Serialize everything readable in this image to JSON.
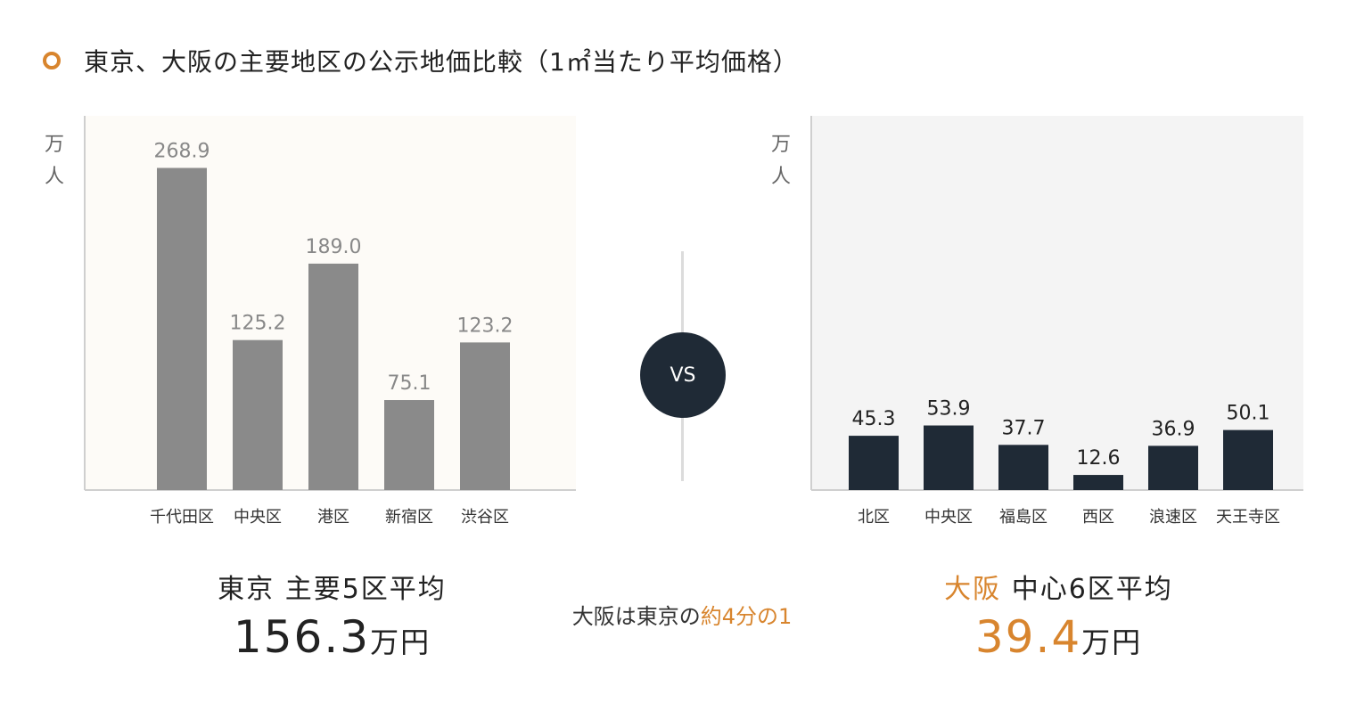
{
  "title": "東京、大阪の主要地区の公示地価比較（1㎡当たり平均価格）",
  "colors": {
    "accent": "#d8852e",
    "tokyo_bar": "#8a8a8a",
    "osaka_bar": "#1f2a36",
    "tokyo_bg": "#fdfbf7",
    "osaka_bg": "#f4f4f4"
  },
  "vs_label": "VS",
  "chart_data": [
    {
      "type": "bar",
      "title": "東京",
      "ylabel": "万人",
      "ylim": [
        0,
        300
      ],
      "categories": [
        "千代田区",
        "中央区",
        "港区",
        "新宿区",
        "渋谷区"
      ],
      "values": [
        268.9,
        125.2,
        189.0,
        75.1,
        123.2
      ],
      "value_labels": [
        "268.9",
        "125.2",
        "189.0",
        "75.1",
        "123.2"
      ]
    },
    {
      "type": "bar",
      "title": "大阪",
      "ylabel": "万人",
      "ylim": [
        0,
        300
      ],
      "categories": [
        "北区",
        "中央区",
        "福島区",
        "西区",
        "浪速区",
        "天王寺区"
      ],
      "values": [
        45.3,
        53.9,
        37.7,
        12.6,
        36.9,
        50.1
      ],
      "value_labels": [
        "45.3",
        "53.9",
        "37.7",
        "12.6",
        "36.9",
        "50.1"
      ]
    }
  ],
  "tokyo": {
    "unit_top": "万",
    "unit_bottom": "人",
    "summary_city": "東京",
    "summary_label": "主要5区平均",
    "summary_value": "156.3",
    "summary_unit": "万円"
  },
  "osaka": {
    "unit_top": "万",
    "unit_bottom": "人",
    "summary_city": "大阪",
    "summary_label": "中心6区平均",
    "summary_value": "39.4",
    "summary_unit": "万円"
  },
  "comparison": {
    "prefix": "大阪は東京の",
    "highlight": "約4分の1"
  }
}
